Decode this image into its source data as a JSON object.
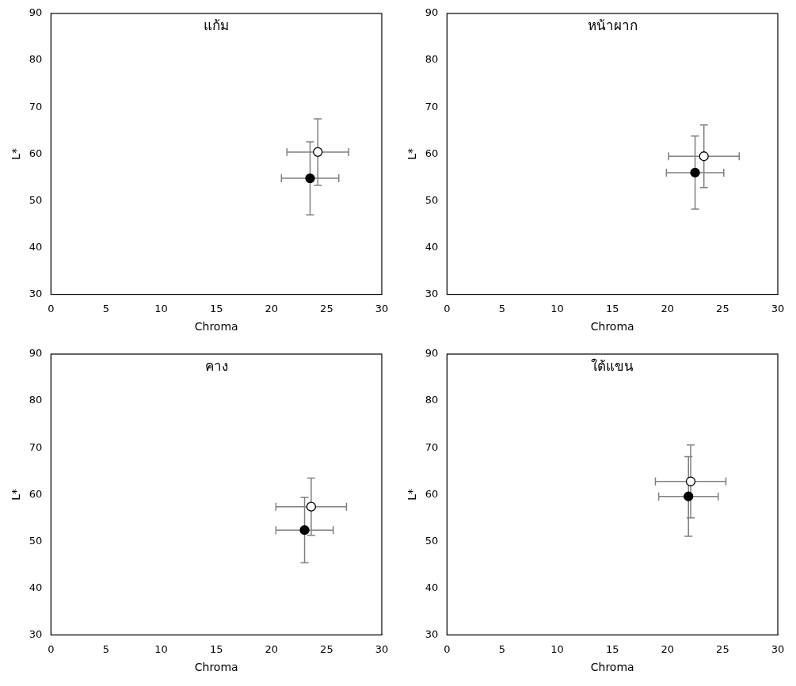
{
  "chart_data": [
    {
      "type": "scatter",
      "title": "แก้ม",
      "x_label": "Chroma",
      "y_label": "L*",
      "xlim": [
        0,
        30
      ],
      "xticks": [
        0,
        5,
        10,
        15,
        20,
        25,
        30
      ],
      "ylim": [
        30,
        90
      ],
      "yticks": [
        30,
        40,
        50,
        60,
        70,
        80,
        90
      ],
      "grid": false,
      "series": [
        {
          "color": "#000000",
          "marker": "circle",
          "x": [
            23.5
          ],
          "values": [
            54.8
          ],
          "x_error": [
            2.6
          ],
          "y_error": [
            7.8
          ]
        },
        {
          "color": "#ffffff",
          "marker": "circle",
          "x": [
            24.2
          ],
          "values": [
            60.4
          ],
          "x_error": [
            2.8
          ],
          "y_error": [
            7.1
          ]
        }
      ]
    },
    {
      "type": "scatter",
      "title": "หน้าผาก",
      "x_label": "Chroma",
      "y_label": "L*",
      "xlim": [
        0,
        30
      ],
      "xticks": [
        0,
        5,
        10,
        15,
        20,
        25,
        30
      ],
      "ylim": [
        30,
        90
      ],
      "yticks": [
        30,
        40,
        50,
        60,
        70,
        80,
        90
      ],
      "grid": false,
      "series": [
        {
          "color": "#000000",
          "marker": "circle",
          "x": [
            22.5
          ],
          "values": [
            56.0
          ],
          "x_error": [
            2.6
          ],
          "y_error": [
            7.8
          ]
        },
        {
          "color": "#ffffff",
          "marker": "circle",
          "x": [
            23.3
          ],
          "values": [
            59.5
          ],
          "x_error": [
            3.2
          ],
          "y_error": [
            6.7
          ]
        }
      ]
    },
    {
      "type": "scatter",
      "title": "คาง",
      "x_label": "Chroma",
      "y_label": "L*",
      "xlim": [
        0,
        30
      ],
      "xticks": [
        0,
        5,
        10,
        15,
        20,
        25,
        30
      ],
      "ylim": [
        30,
        90
      ],
      "yticks": [
        30,
        40,
        50,
        60,
        70,
        80,
        90
      ],
      "grid": false,
      "series": [
        {
          "color": "#000000",
          "marker": "circle",
          "x": [
            23.0
          ],
          "values": [
            52.4
          ],
          "x_error": [
            2.6
          ],
          "y_error": [
            7.0
          ]
        },
        {
          "color": "#ffffff",
          "marker": "circle",
          "x": [
            23.6
          ],
          "values": [
            57.4
          ],
          "x_error": [
            3.2
          ],
          "y_error": [
            6.1
          ]
        }
      ]
    },
    {
      "type": "scatter",
      "title": "ใต้แขน",
      "x_label": "Chroma",
      "y_label": "L*",
      "xlim": [
        0,
        30
      ],
      "xticks": [
        0,
        5,
        10,
        15,
        20,
        25,
        30
      ],
      "ylim": [
        30,
        90
      ],
      "yticks": [
        30,
        40,
        50,
        60,
        70,
        80,
        90
      ],
      "grid": false,
      "series": [
        {
          "color": "#000000",
          "marker": "circle",
          "x": [
            21.9
          ],
          "values": [
            59.6
          ],
          "x_error": [
            2.7
          ],
          "y_error": [
            8.5
          ]
        },
        {
          "color": "#ffffff",
          "marker": "circle",
          "x": [
            22.1
          ],
          "values": [
            62.8
          ],
          "x_error": [
            3.2
          ],
          "y_error": [
            7.8
          ]
        }
      ]
    }
  ]
}
